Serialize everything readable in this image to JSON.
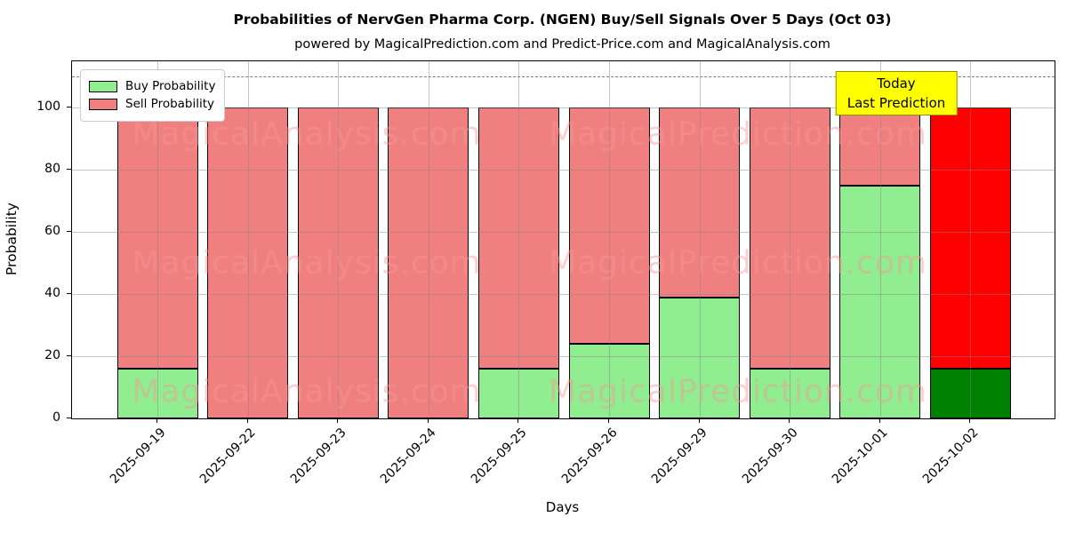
{
  "header": {
    "title": "Probabilities of NervGen Pharma Corp. (NGEN) Buy/Sell Signals Over 5 Days (Oct 03)",
    "subtitle": "powered by MagicalPrediction.com and Predict-Price.com and MagicalAnalysis.com"
  },
  "chart_data": {
    "type": "bar",
    "stacked": true,
    "title": "Probabilities of NervGen Pharma Corp. (NGEN) Buy/Sell Signals Over 5 Days (Oct 03)",
    "xlabel": "Days",
    "ylabel": "Probability",
    "categories": [
      "2025-09-19",
      "2025-09-22",
      "2025-09-23",
      "2025-09-24",
      "2025-09-25",
      "2025-09-26",
      "2025-09-29",
      "2025-09-30",
      "2025-10-01",
      "2025-10-02"
    ],
    "series": [
      {
        "name": "Buy Probability",
        "color": "#90ee90",
        "values": [
          16,
          0,
          0,
          0,
          16,
          24,
          39,
          16,
          75,
          16
        ]
      },
      {
        "name": "Sell Probability",
        "color": "#f08080",
        "values": [
          84,
          100,
          100,
          100,
          84,
          76,
          61,
          84,
          25,
          84
        ]
      }
    ],
    "today_index": 9,
    "today_colors": {
      "buy": "#008000",
      "sell": "#ff0000"
    },
    "bar_edge_color": "#000000",
    "yticks": [
      0,
      20,
      40,
      60,
      80,
      100
    ],
    "ylim": [
      0,
      115
    ],
    "dashed_line_y": 110,
    "grid": true,
    "legend_position": "upper left"
  },
  "legend": {
    "items": [
      {
        "label": "Buy Probability",
        "color": "#90ee90"
      },
      {
        "label": "Sell Probability",
        "color": "#f08080"
      }
    ]
  },
  "annotation": {
    "line1": "Today",
    "line2": "Last Prediction",
    "bg_color": "#ffff00"
  },
  "watermarks": {
    "left": "MagicalAnalysis.com",
    "right": "MagicalPrediction.com"
  }
}
